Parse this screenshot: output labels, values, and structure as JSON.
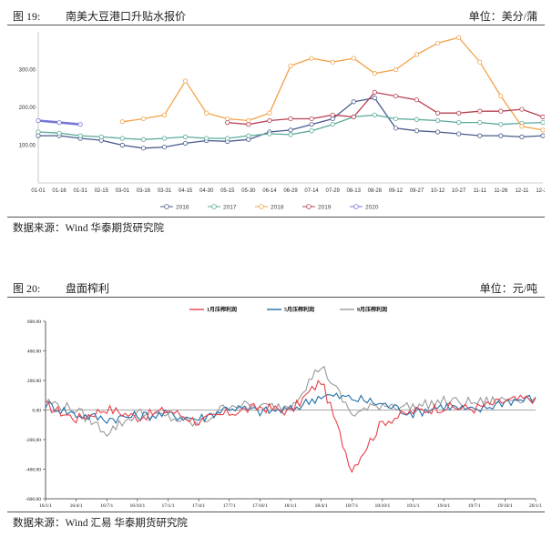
{
  "fig19": {
    "number": "图 19:",
    "title": "南美大豆港口升贴水报价",
    "unit": "单位：美分/蒲",
    "source": "数据来源：Wind 华泰期货研究院"
  },
  "fig20": {
    "number": "图 20:",
    "title": "盘面榨利",
    "unit": "单位：元/吨",
    "source": "数据来源：Wind 汇易 华泰期货研究院"
  },
  "chart_data": [
    {
      "type": "line",
      "title": "南美大豆港口升贴水报价",
      "ylim": [
        0,
        400
      ],
      "yticks": [
        "100.00",
        "200.00",
        "300.00"
      ],
      "categories": [
        "01-01",
        "01-16",
        "01-31",
        "02-15",
        "03-01",
        "03-16",
        "03-31",
        "04-15",
        "04-30",
        "05-15",
        "05-30",
        "06-14",
        "06-29",
        "07-14",
        "07-29",
        "08-13",
        "08-28",
        "09-12",
        "09-27",
        "10-12",
        "10-27",
        "11-11",
        "11-26",
        "12-11",
        "12-26"
      ],
      "legend_position": "bottom",
      "grid": false,
      "series": [
        {
          "name": "2016",
          "color": "#4a5a8c",
          "values": [
            125,
            125,
            118,
            113,
            100,
            92,
            95,
            105,
            112,
            110,
            115,
            135,
            140,
            155,
            170,
            215,
            225,
            145,
            138,
            135,
            130,
            125,
            125,
            122,
            125
          ]
        },
        {
          "name": "2017",
          "color": "#5aaa9a",
          "values": [
            135,
            132,
            125,
            122,
            118,
            115,
            118,
            122,
            118,
            118,
            125,
            130,
            128,
            138,
            155,
            175,
            180,
            170,
            168,
            165,
            160,
            160,
            155,
            158,
            160
          ]
        },
        {
          "name": "2018",
          "color": "#f2a24a",
          "values": [
            null,
            null,
            null,
            null,
            162,
            170,
            180,
            270,
            185,
            170,
            165,
            185,
            310,
            330,
            320,
            330,
            290,
            300,
            340,
            370,
            385,
            320,
            230,
            150,
            140
          ]
        },
        {
          "name": "2019",
          "color": "#b84050",
          "values": [
            null,
            null,
            null,
            null,
            null,
            null,
            null,
            null,
            null,
            160,
            155,
            165,
            170,
            170,
            180,
            175,
            240,
            230,
            220,
            185,
            185,
            190,
            190,
            195,
            175
          ]
        },
        {
          "name": "2020",
          "color": "#7777d6",
          "values": [
            165,
            160,
            155,
            null,
            null,
            null,
            null,
            null,
            null,
            null,
            null,
            null,
            null,
            null,
            null,
            null,
            null,
            null,
            null,
            null,
            null,
            null,
            null,
            null,
            null
          ]
        }
      ]
    },
    {
      "type": "line",
      "title": "盘面榨利",
      "ylim": [
        -600,
        600
      ],
      "yticks": [
        "600.00",
        "400.00",
        "200.00",
        "0.00",
        "-200,00",
        "-400.00",
        "-600.00"
      ],
      "categories": [
        "16/1/1",
        "16/4/1",
        "16/7/1",
        "16/10/1",
        "17/1/1",
        "17/4/1",
        "17/7/1",
        "17/10/1",
        "18/1/1",
        "18/4/1",
        "18/7/1",
        "18/10/1",
        "19/1/1",
        "19/4/1",
        "19/7/1",
        "19/10/1",
        "20/1/1"
      ],
      "legend_position": "top",
      "grid": false,
      "series": [
        {
          "name": "1月压榨利润",
          "color": "#e8404a",
          "values": [
            30,
            -60,
            10,
            -50,
            0,
            -80,
            -20,
            20,
            -10,
            200,
            -400,
            -80,
            -10,
            20,
            10,
            60,
            80
          ]
        },
        {
          "name": "5月压榨利润",
          "color": "#1f6fa8",
          "values": [
            40,
            -30,
            -60,
            -40,
            -30,
            -60,
            20,
            -10,
            0,
            100,
            80,
            40,
            -20,
            30,
            -10,
            60,
            80
          ]
        },
        {
          "name": "9月压榨利润",
          "color": "#999999",
          "values": [
            60,
            0,
            -150,
            -20,
            -50,
            -100,
            40,
            20,
            30,
            300,
            -30,
            40,
            20,
            60,
            50,
            70,
            90
          ]
        }
      ]
    }
  ]
}
